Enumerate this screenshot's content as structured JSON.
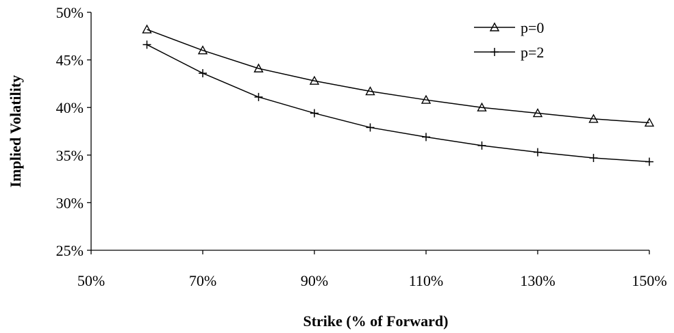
{
  "chart_data": {
    "type": "line",
    "title": "",
    "xlabel": "Strike (% of Forward)",
    "ylabel": "Implied Volatility",
    "x_ticks": [
      "50%",
      "70%",
      "90%",
      "110%",
      "130%",
      "150%"
    ],
    "y_ticks": [
      "25%",
      "30%",
      "35%",
      "40%",
      "45%",
      "50%"
    ],
    "xlim": [
      50,
      150
    ],
    "ylim": [
      25,
      50
    ],
    "x_unit": "%",
    "y_unit": "%",
    "grid": false,
    "legend_position": "top-right",
    "x": [
      60,
      70,
      80,
      90,
      100,
      110,
      120,
      130,
      140,
      150
    ],
    "series": [
      {
        "name": "p=0",
        "marker": "triangle",
        "values": [
          48.2,
          46.0,
          44.1,
          42.8,
          41.7,
          40.8,
          40.0,
          39.4,
          38.8,
          38.4
        ]
      },
      {
        "name": "p=2",
        "marker": "plus",
        "values": [
          46.6,
          43.6,
          41.1,
          39.4,
          37.9,
          36.9,
          36.0,
          35.3,
          34.7,
          34.3
        ]
      }
    ]
  }
}
